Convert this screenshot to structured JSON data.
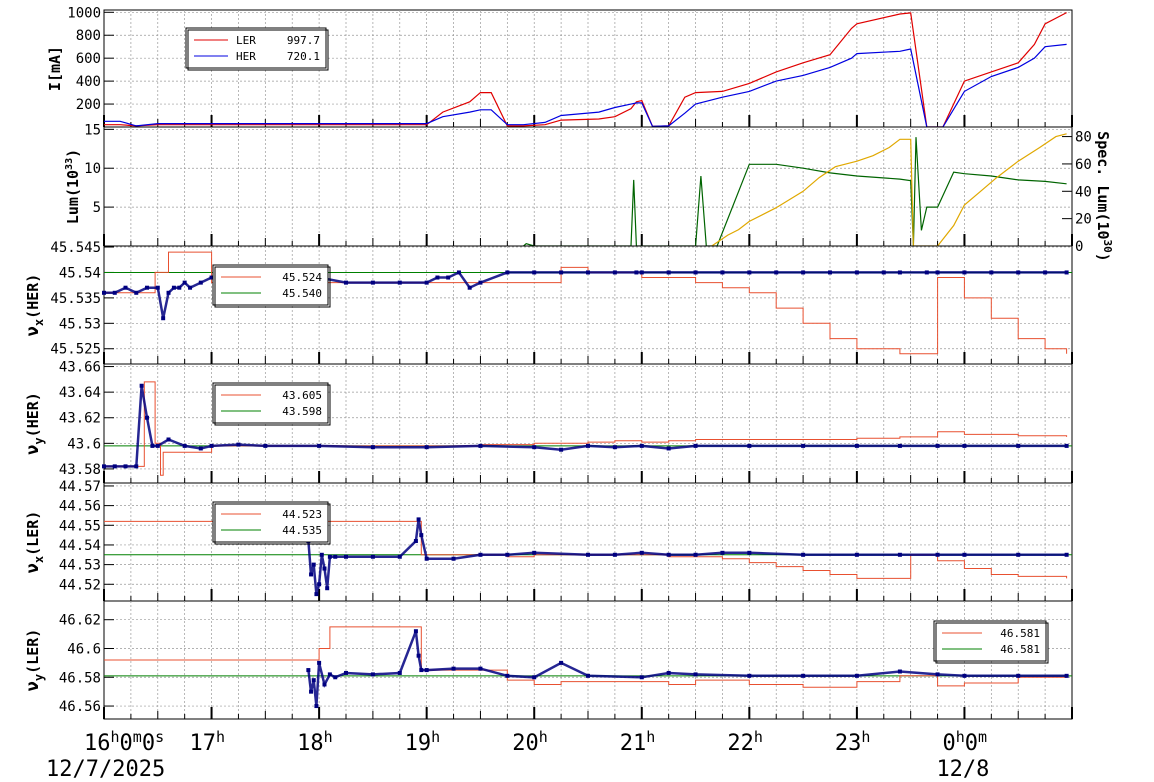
{
  "chart_data": [
    {
      "type": "line",
      "ylabel": "I[mA]",
      "yticks": [
        "200",
        "400",
        "600",
        "800",
        "1000"
      ],
      "ylim": [
        0,
        1020
      ],
      "legend": [
        {
          "name": "LER",
          "value": "997.7",
          "color": "#e00000"
        },
        {
          "name": "HER",
          "value": "720.1",
          "color": "#0000e0"
        }
      ],
      "series": [
        {
          "name": "LER",
          "color": "#e00000",
          "x": [
            0,
            0.3,
            0.6,
            1,
            2,
            3,
            4,
            5,
            6,
            6.3,
            6.8,
            7.0,
            7.2,
            7.5,
            7.8,
            8.2,
            8.5,
            9.2,
            9.5,
            9.8,
            9.9,
            10.0,
            10.2,
            10.5,
            10.8,
            11.0,
            11.5,
            12.0,
            12.5,
            13.0,
            13.5,
            13.9,
            14.0,
            14.8,
            15.0,
            15.3,
            15.6,
            16.0,
            16.5,
            17.0,
            17.3,
            17.5,
            17.9
          ],
          "y": [
            20,
            20,
            10,
            20,
            20,
            20,
            20,
            20,
            20,
            130,
            220,
            300,
            300,
            10,
            10,
            20,
            60,
            70,
            90,
            160,
            220,
            230,
            5,
            10,
            260,
            300,
            310,
            380,
            480,
            560,
            630,
            860,
            900,
            985,
            995,
            0,
            0,
            400,
            480,
            560,
            720,
            900,
            997
          ]
        },
        {
          "name": "HER",
          "color": "#0000e0",
          "x": [
            0,
            0.3,
            0.6,
            1,
            2,
            3,
            4,
            5,
            6,
            6.3,
            6.8,
            7.0,
            7.2,
            7.5,
            7.8,
            8.2,
            8.5,
            9.2,
            9.5,
            9.8,
            9.9,
            10.0,
            10.2,
            10.5,
            10.8,
            11.0,
            11.5,
            12.0,
            12.5,
            13.0,
            13.5,
            13.9,
            14.0,
            14.8,
            15.0,
            15.3,
            15.6,
            16.0,
            16.5,
            17.0,
            17.3,
            17.5,
            17.9
          ],
          "y": [
            50,
            50,
            10,
            30,
            30,
            30,
            30,
            30,
            30,
            90,
            130,
            150,
            150,
            20,
            20,
            40,
            100,
            130,
            170,
            200,
            210,
            210,
            5,
            10,
            120,
            200,
            260,
            310,
            400,
            450,
            520,
            600,
            640,
            660,
            680,
            0,
            0,
            310,
            440,
            520,
            600,
            700,
            720
          ]
        }
      ]
    },
    {
      "type": "line",
      "ylabel": "Lum(10",
      "ylabel_sup": "33",
      "ylabel_end": ")",
      "yticks": [
        "5",
        "10",
        "15"
      ],
      "ylim": [
        0,
        15.3
      ],
      "ylabel2": "Spec. Lum(10",
      "ylabel2_sup": "30",
      "ylabel2_end": ")",
      "yticks2": [
        "0",
        "20",
        "40",
        "60",
        "80"
      ],
      "ylim2": [
        0,
        87
      ],
      "series": [
        {
          "name": "Lum",
          "color": "#006400",
          "x": [
            7.8,
            7.85,
            8.0,
            9.8,
            9.85,
            9.9,
            10.0,
            11.0,
            11.1,
            11.2,
            11.3,
            11.4,
            12.0,
            12.5,
            13.0,
            13.5,
            14.0,
            14.8,
            15.0,
            15.05,
            15.1,
            15.2,
            15.3,
            15.5,
            15.8,
            16.0,
            16.5,
            17.0,
            17.5,
            17.9
          ],
          "y": [
            0,
            0.3,
            0,
            0,
            8.5,
            0,
            0,
            0,
            9,
            0,
            0,
            0,
            10.5,
            10.5,
            10,
            9.4,
            9,
            8.6,
            8.4,
            0,
            14,
            2,
            5,
            5,
            9.5,
            9.3,
            9,
            8.5,
            8.3,
            8.0
          ]
        },
        {
          "name": "Spec. Lum",
          "color": "#e0a800",
          "axis": "right",
          "x": [
            11.3,
            11.6,
            11.8,
            12.0,
            12.5,
            13.0,
            13.3,
            13.6,
            14.0,
            14.3,
            14.6,
            14.8,
            15.0,
            15.05,
            15.5,
            15.8,
            16.0,
            16.3,
            16.6,
            17.0,
            17.4,
            17.7,
            17.9
          ],
          "y": [
            0,
            8,
            12,
            18,
            28,
            40,
            50,
            58,
            62,
            66,
            72,
            78,
            78,
            0,
            0,
            15,
            30,
            40,
            50,
            62,
            72,
            80,
            82
          ]
        }
      ]
    },
    {
      "type": "scatter",
      "ylabel": "νx(HER)",
      "ylabel_main": "ν",
      "ylabel_sub": "x",
      "ylabel_rest": "(HER)",
      "yticks": [
        "45.525",
        "45.53",
        "45.535",
        "45.54",
        "45.545"
      ],
      "ytick_values": [
        45.525,
        45.53,
        45.535,
        45.54,
        45.545
      ],
      "ylim": [
        45.522,
        45.5452
      ],
      "legend": [
        {
          "value": "45.524",
          "color": "#e85030"
        },
        {
          "value": "45.540",
          "color": "#008000"
        }
      ],
      "reference": 45.54,
      "set_series": {
        "color": "#e85030",
        "x": [
          0,
          0.9,
          0.95,
          1.2,
          1.5,
          1.8,
          2.0,
          2.0,
          2.5,
          3,
          4,
          5,
          6,
          7.5,
          8.5,
          9,
          9.5,
          9.9,
          10.0,
          10.8,
          11.0,
          11.5,
          12.0,
          12.5,
          13.0,
          13.5,
          14.0,
          14.8,
          15.0,
          15.5,
          15.8,
          16.0,
          16.5,
          17.0,
          17.5,
          17.9
        ],
        "y": [
          45.536,
          45.536,
          45.54,
          45.544,
          45.544,
          45.544,
          45.544,
          45.538,
          45.538,
          45.538,
          45.538,
          45.538,
          45.538,
          45.538,
          45.541,
          45.54,
          45.54,
          45.54,
          45.539,
          45.539,
          45.538,
          45.537,
          45.536,
          45.533,
          45.53,
          45.527,
          45.525,
          45.524,
          45.524,
          45.539,
          45.539,
          45.535,
          45.531,
          45.527,
          45.525,
          45.524
        ]
      },
      "measured": {
        "color": "#000080",
        "x": [
          0,
          0.2,
          0.4,
          0.6,
          0.8,
          1.0,
          1.1,
          1.2,
          1.3,
          1.4,
          1.5,
          1.6,
          1.8,
          2.0,
          2.2,
          2.5,
          3,
          3.5,
          4,
          4.5,
          5,
          5.5,
          6,
          6.2,
          6.4,
          6.6,
          6.8,
          7.0,
          7.5,
          8.0,
          8.5,
          9.0,
          9.5,
          9.9,
          10.0,
          10.5,
          11,
          11.5,
          12,
          12.5,
          13,
          13.5,
          14,
          14.5,
          14.8,
          15.3,
          15.5,
          16,
          16.5,
          17,
          17.5,
          17.9
        ],
        "y": [
          45.536,
          45.536,
          45.537,
          45.536,
          45.537,
          45.537,
          45.531,
          45.536,
          45.537,
          45.537,
          45.538,
          45.537,
          45.538,
          45.539,
          45.54,
          45.539,
          45.539,
          45.539,
          45.539,
          45.538,
          45.538,
          45.538,
          45.538,
          45.539,
          45.539,
          45.54,
          45.537,
          45.538,
          45.54,
          45.54,
          45.54,
          45.54,
          45.54,
          45.54,
          45.54,
          45.54,
          45.54,
          45.54,
          45.54,
          45.54,
          45.54,
          45.54,
          45.54,
          45.54,
          45.54,
          45.54,
          45.54,
          45.54,
          45.54,
          45.54,
          45.54,
          45.54
        ]
      }
    },
    {
      "type": "scatter",
      "ylabel_main": "ν",
      "ylabel_sub": "y",
      "ylabel_rest": "(HER)",
      "yticks": [
        "43.58",
        "43.6",
        "43.62",
        "43.64",
        "43.66"
      ],
      "ytick_values": [
        43.58,
        43.6,
        43.62,
        43.64,
        43.66
      ],
      "ylim": [
        43.569,
        43.662
      ],
      "legend": [
        {
          "value": "43.605",
          "color": "#e85030"
        },
        {
          "value": "43.598",
          "color": "#008000"
        }
      ],
      "reference": 43.598,
      "set_series": {
        "color": "#e85030",
        "x": [
          0,
          0.7,
          0.75,
          0.9,
          0.95,
          1.0,
          1.05,
          1.1,
          1.2,
          1.5,
          1.8,
          2.0,
          2.5,
          3,
          4,
          5,
          6,
          7,
          8,
          9,
          9.5,
          10,
          10.5,
          11,
          12,
          13,
          14,
          14.8,
          15.0,
          15.5,
          16,
          17,
          17.9
        ],
        "y": [
          43.582,
          43.582,
          43.648,
          43.648,
          43.6,
          43.6,
          43.575,
          43.593,
          43.593,
          43.593,
          43.593,
          43.598,
          43.598,
          43.598,
          43.598,
          43.598,
          43.598,
          43.599,
          43.6,
          43.601,
          43.602,
          43.601,
          43.602,
          43.603,
          43.603,
          43.603,
          43.604,
          43.605,
          43.605,
          43.609,
          43.607,
          43.606,
          43.605
        ]
      },
      "measured": {
        "color": "#000080",
        "x": [
          0,
          0.2,
          0.4,
          0.6,
          0.7,
          0.8,
          0.9,
          1.0,
          1.2,
          1.5,
          1.8,
          2.0,
          2.5,
          3,
          4,
          5,
          6,
          7,
          8,
          8.5,
          9,
          9.5,
          10,
          10.5,
          11,
          12,
          13,
          14,
          14.8,
          15.5,
          16,
          17,
          17.9
        ],
        "y": [
          43.582,
          43.582,
          43.582,
          43.582,
          43.645,
          43.62,
          43.598,
          43.598,
          43.603,
          43.598,
          43.596,
          43.598,
          43.599,
          43.598,
          43.598,
          43.597,
          43.597,
          43.598,
          43.597,
          43.595,
          43.598,
          43.597,
          43.598,
          43.596,
          43.598,
          43.598,
          43.598,
          43.598,
          43.598,
          43.598,
          43.598,
          43.598,
          43.598
        ]
      }
    },
    {
      "type": "scatter",
      "ylabel_main": "ν",
      "ylabel_sub": "x",
      "ylabel_rest": "(LER)",
      "yticks": [
        "44.52",
        "44.53",
        "44.54",
        "44.55",
        "44.56",
        "44.57"
      ],
      "ytick_values": [
        44.52,
        44.53,
        44.54,
        44.55,
        44.56,
        44.57
      ],
      "ylim": [
        44.5115,
        44.5715
      ],
      "legend": [
        {
          "value": "44.523",
          "color": "#e85030"
        },
        {
          "value": "44.535",
          "color": "#008000"
        }
      ],
      "reference": 44.535,
      "set_series": {
        "color": "#e85030",
        "x": [
          0,
          1,
          2,
          3,
          3.6,
          4.0,
          4.5,
          5,
          5.5,
          5.8,
          5.9,
          6.0,
          6.5,
          7,
          7.5,
          8,
          8.5,
          9,
          9.5,
          10,
          10.5,
          11,
          11.5,
          12,
          12.5,
          13,
          13.5,
          14,
          14.8,
          15.0,
          15.5,
          16,
          16.5,
          17,
          17.9
        ],
        "y": [
          44.552,
          44.552,
          44.552,
          44.552,
          44.552,
          44.552,
          44.552,
          44.552,
          44.552,
          44.552,
          44.535,
          44.535,
          44.535,
          44.535,
          44.534,
          44.535,
          44.535,
          44.535,
          44.535,
          44.535,
          44.534,
          44.534,
          44.533,
          44.531,
          44.529,
          44.527,
          44.525,
          44.523,
          44.523,
          44.535,
          44.532,
          44.528,
          44.525,
          44.524,
          44.523
        ]
      },
      "measured": {
        "color": "#000080",
        "x": [
          3.8,
          3.85,
          3.9,
          3.95,
          4.0,
          4.05,
          4.1,
          4.15,
          4.2,
          4.3,
          4.5,
          5,
          5.5,
          5.8,
          5.85,
          5.9,
          6.0,
          6.5,
          7,
          7.5,
          8,
          9,
          9.5,
          10,
          10.5,
          11,
          11.5,
          12,
          13,
          14,
          14.8,
          15.5,
          16,
          17,
          17.9
        ],
        "y": [
          44.542,
          44.525,
          44.53,
          44.515,
          44.52,
          44.535,
          44.528,
          44.518,
          44.534,
          44.534,
          44.534,
          44.534,
          44.534,
          44.542,
          44.553,
          44.545,
          44.533,
          44.533,
          44.535,
          44.535,
          44.536,
          44.535,
          44.535,
          44.536,
          44.535,
          44.535,
          44.536,
          44.536,
          44.535,
          44.535,
          44.535,
          44.535,
          44.535,
          44.535,
          44.535
        ]
      }
    },
    {
      "type": "scatter",
      "ylabel_main": "ν",
      "ylabel_sub": "y",
      "ylabel_rest": "(LER)",
      "yticks": [
        "46.56",
        "46.58",
        "46.6",
        "46.62"
      ],
      "ytick_values": [
        46.56,
        46.58,
        46.6,
        46.62
      ],
      "ylim": [
        46.551,
        46.633
      ],
      "legend": [
        {
          "value": "46.581",
          "color": "#e85030"
        },
        {
          "value": "46.581",
          "color": "#008000"
        }
      ],
      "reference": 46.581,
      "set_series": {
        "color": "#e85030",
        "x": [
          0,
          1,
          2,
          3,
          3.8,
          4.0,
          4.2,
          4.5,
          5,
          5.5,
          5.8,
          5.9,
          6.0,
          6.5,
          7,
          7.5,
          8,
          8.5,
          9,
          10,
          10.5,
          11,
          12,
          13,
          14,
          14.8,
          15.0,
          15.5,
          16,
          17,
          17.9
        ],
        "y": [
          46.592,
          46.592,
          46.592,
          46.592,
          46.592,
          46.6,
          46.615,
          46.615,
          46.615,
          46.615,
          46.615,
          46.585,
          46.585,
          46.585,
          46.585,
          46.578,
          46.575,
          46.577,
          46.577,
          46.577,
          46.575,
          46.578,
          46.575,
          46.573,
          46.577,
          46.581,
          46.581,
          46.574,
          46.576,
          46.58,
          46.581
        ]
      },
      "measured": {
        "color": "#000080",
        "x": [
          3.8,
          3.85,
          3.9,
          3.95,
          4.0,
          4.1,
          4.2,
          4.3,
          4.5,
          5,
          5.5,
          5.8,
          5.85,
          5.9,
          6.0,
          6.5,
          7,
          7.5,
          8,
          8.5,
          9,
          10,
          10.5,
          11,
          12,
          13,
          14,
          14.8,
          15.5,
          16,
          17,
          17.9
        ],
        "y": [
          46.585,
          46.57,
          46.578,
          46.56,
          46.59,
          46.575,
          46.582,
          46.58,
          46.583,
          46.582,
          46.583,
          46.612,
          46.595,
          46.585,
          46.585,
          46.586,
          46.586,
          46.581,
          46.58,
          46.59,
          46.581,
          46.58,
          46.583,
          46.582,
          46.581,
          46.581,
          46.581,
          46.584,
          46.582,
          46.581,
          46.581,
          46.581
        ]
      }
    }
  ],
  "time_axis": {
    "hours_span": 18,
    "labels": [
      {
        "x": 0,
        "main": "16",
        "sup": "h",
        "extra": "0",
        "extra_sup": "m",
        "extra2": "0",
        "extra2_sup": "s"
      },
      {
        "x": 2,
        "main": "17",
        "sup": "h"
      },
      {
        "x": 4,
        "main": "18",
        "sup": "h"
      },
      {
        "x": 6,
        "main": "19",
        "sup": "h"
      },
      {
        "x": 8,
        "main": "20",
        "sup": "h"
      },
      {
        "x": 10,
        "main": "21",
        "sup": "h"
      },
      {
        "x": 12,
        "main": "22",
        "sup": "h"
      },
      {
        "x": 14,
        "main": "23",
        "sup": "h"
      },
      {
        "x": 16,
        "main": "0",
        "sup": "h",
        "extra": "0",
        "extra_sup": "m"
      }
    ],
    "dates": [
      {
        "x": 0,
        "text": "12/7/2025"
      },
      {
        "x": 16,
        "text": "12/8"
      }
    ]
  }
}
